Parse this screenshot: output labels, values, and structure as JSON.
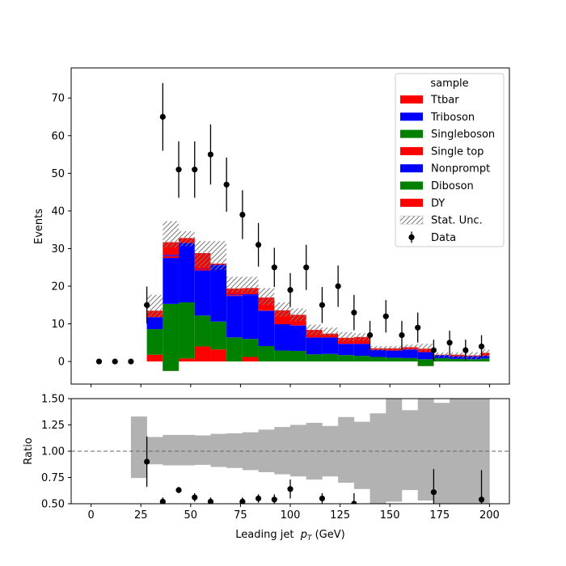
{
  "chart_data": [
    {
      "panel": "main",
      "type": "stacked-histogram",
      "xlabel": "",
      "ylabel": "Events",
      "xlim": [
        -10,
        210
      ],
      "ylim": [
        -6,
        78
      ],
      "yticks": [
        0,
        10,
        20,
        30,
        40,
        50,
        60,
        70
      ],
      "bin_edges": [
        20,
        28,
        36,
        44,
        52,
        60,
        68,
        76,
        84,
        92,
        100,
        108,
        116,
        124,
        132,
        140,
        148,
        156,
        164,
        172,
        180,
        188,
        196,
        200
      ],
      "legend": {
        "title": "sample",
        "location": "upper-right",
        "entries": [
          "Ttbar",
          "Triboson",
          "Singleboson",
          "Single top",
          "Nonprompt",
          "Diboson",
          "DY",
          "Stat. Unc.",
          "Data"
        ]
      },
      "series": [
        {
          "name": "DY",
          "color": "#ff0000",
          "values": [
            0,
            1.8,
            -2.5,
            0.8,
            4.0,
            3.2,
            0,
            1.2,
            0,
            0,
            0,
            0,
            0,
            0,
            0,
            0,
            0,
            0,
            -1.2,
            0,
            0,
            0,
            0
          ]
        },
        {
          "name": "Diboson",
          "color": "#008000",
          "values": [
            0,
            6.8,
            17.8,
            14.9,
            8.2,
            7.4,
            6.4,
            4.8,
            4.1,
            2.9,
            2.8,
            1.9,
            2.0,
            1.7,
            1.5,
            1.2,
            1.0,
            0.9,
            1.8,
            0.9,
            0.7,
            0.6,
            0.8
          ]
        },
        {
          "name": "Nonprompt",
          "color": "#0000ff",
          "values": [
            0,
            3.2,
            12.2,
            15.8,
            12.0,
            14.8,
            11.0,
            11.6,
            9.4,
            7.0,
            6.7,
            4.5,
            4.4,
            3.0,
            3.2,
            1.9,
            1.9,
            2.3,
            1.9,
            0.8,
            0.7,
            0.8,
            0.7
          ]
        },
        {
          "name": "Single top",
          "color": "#ff0000",
          "values": [
            0,
            0,
            0.5,
            0,
            0.3,
            0,
            0.2,
            0,
            0.2,
            0,
            0,
            0,
            0,
            0,
            0,
            0,
            0,
            0,
            0,
            0,
            0,
            0,
            0
          ]
        },
        {
          "name": "Singleboson",
          "color": "#008000",
          "values": [
            0,
            0,
            0,
            0,
            0,
            0,
            0,
            0,
            0,
            0,
            0,
            0,
            0,
            0,
            0,
            0,
            0,
            0,
            0,
            0,
            0,
            0,
            0
          ]
        },
        {
          "name": "Triboson",
          "color": "#0000ff",
          "values": [
            0,
            0,
            0.3,
            0,
            0.1,
            0.3,
            0.2,
            0.3,
            0,
            0,
            0.1,
            0,
            0,
            0,
            0,
            0,
            0,
            0,
            0,
            0,
            0,
            0,
            0
          ]
        },
        {
          "name": "Ttbar",
          "color": "#ff0000",
          "values": [
            0,
            1.7,
            3.4,
            1.3,
            4.2,
            0.3,
            1.6,
            1.6,
            3.3,
            3.7,
            2.8,
            2.0,
            1.0,
            1.6,
            1.8,
            0.4,
            0.6,
            0.6,
            0.9,
            0.1,
            0.4,
            0.2,
            0.8
          ]
        }
      ],
      "stat_unc": {
        "label": "Stat. Unc.",
        "lower": [
          0,
          11.7,
          30.3,
          30.6,
          25.0,
          24.3,
          18.3,
          18.3,
          15.0,
          11.9,
          10.7,
          7.0,
          6.8,
          5.4,
          5.5,
          2.9,
          2.9,
          3.1,
          2.7,
          1.2,
          1.0,
          0.7,
          1.3
        ],
        "upper": [
          0,
          17.7,
          37.3,
          34.6,
          32.0,
          32.0,
          22.5,
          22.5,
          19.5,
          15.7,
          14.1,
          9.8,
          9.0,
          7.8,
          7.5,
          4.1,
          4.1,
          4.5,
          4.7,
          2.4,
          2.4,
          2.5,
          3.3
        ]
      },
      "data_points": {
        "label": "Data",
        "x": [
          4,
          12,
          20,
          28,
          36,
          44,
          52,
          60,
          68,
          76,
          84,
          92,
          100,
          108,
          116,
          124,
          132,
          140,
          148,
          156,
          164,
          172,
          180,
          188,
          196
        ],
        "y": [
          0,
          0,
          0,
          15,
          65,
          51,
          51,
          55,
          47,
          39,
          31,
          25,
          19,
          25,
          15,
          20,
          13,
          7,
          12,
          7,
          9,
          3,
          5,
          3,
          4
        ],
        "err": [
          0,
          0,
          0,
          4.9,
          9.0,
          7.5,
          7.5,
          8.0,
          7.2,
          6.5,
          5.8,
          5.2,
          4.5,
          6.0,
          4.8,
          5.5,
          4.7,
          3.8,
          4.3,
          3.8,
          4.0,
          2.8,
          3.2,
          2.8,
          3.0
        ]
      }
    },
    {
      "panel": "ratio",
      "type": "ratio",
      "xlabel": "Leading jet  p_T (GeV)",
      "xlabel_parts": {
        "prefix": "Leading jet  ",
        "symbol": "p",
        "subscript": "T",
        "suffix": " (GeV)"
      },
      "ylabel": "Ratio",
      "xlim": [
        -10,
        210
      ],
      "ylim": [
        0.5,
        1.5
      ],
      "yticks": [
        "0.50",
        "0.75",
        "1.00",
        "1.25",
        "1.50"
      ],
      "xticks": [
        "0",
        "25",
        "50",
        "75",
        "100",
        "125",
        "150",
        "175",
        "200"
      ],
      "reference_line": 1.0,
      "unc_band": {
        "lower": [
          0.745,
          0.875,
          0.865,
          0.865,
          0.87,
          0.85,
          0.84,
          0.82,
          0.8,
          0.78,
          0.76,
          0.73,
          0.76,
          0.7,
          0.64,
          0.5,
          0.52,
          0.63,
          0.53,
          0.5,
          0.5,
          0.5,
          0.5
        ],
        "upper": [
          1.33,
          1.135,
          1.155,
          1.155,
          1.15,
          1.165,
          1.17,
          1.18,
          1.205,
          1.23,
          1.25,
          1.27,
          1.24,
          1.325,
          1.28,
          1.36,
          1.5,
          1.39,
          1.5,
          1.46,
          1.5,
          1.5,
          1.5
        ]
      },
      "points": {
        "x": [
          28,
          36,
          44,
          52,
          60,
          76,
          84,
          92,
          100,
          116,
          132,
          172,
          196
        ],
        "y": [
          0.9,
          0.52,
          0.63,
          0.56,
          0.52,
          0.52,
          0.55,
          0.54,
          0.64,
          0.55,
          0.5,
          0.61,
          0.54
        ],
        "err": [
          0.24,
          0.04,
          0.03,
          0.04,
          0.04,
          0.04,
          0.04,
          0.05,
          0.09,
          0.05,
          0.1,
          0.22,
          0.28
        ]
      }
    }
  ]
}
